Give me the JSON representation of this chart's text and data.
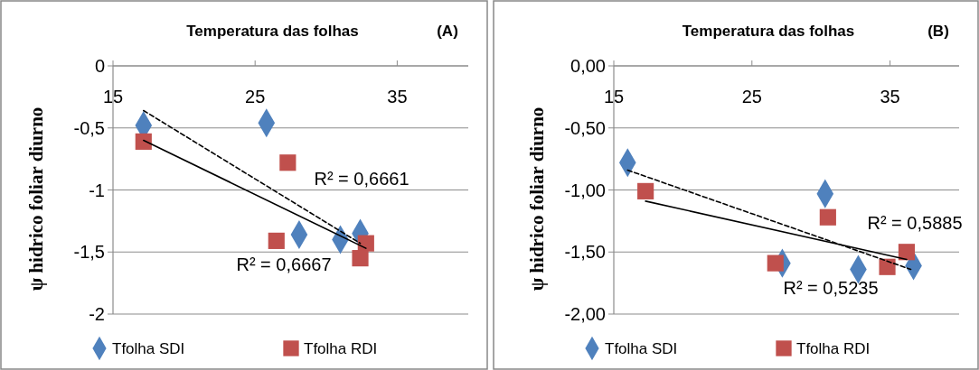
{
  "chart_data": [
    {
      "type": "scatter",
      "title": "Temperatura das folhas",
      "ylabel": "ψ hidrico foliar diurno",
      "annotations": [
        "(A)",
        "R² = 0,6661",
        "R² = 0,6667"
      ],
      "xlim": [
        15,
        40
      ],
      "xticks": [
        15,
        25,
        35
      ],
      "ylim": [
        -2,
        0
      ],
      "yticks": [
        {
          "value": 0,
          "label": "0"
        },
        {
          "value": -0.5,
          "label": "-0,5"
        },
        {
          "value": -1,
          "label": "-1"
        },
        {
          "value": -1.5,
          "label": "-1,5"
        },
        {
          "value": -2,
          "label": "-2"
        }
      ],
      "grid": "y",
      "legend": "bottom",
      "series": [
        {
          "name": "Tfolha SDI",
          "color": "#4f81bd",
          "marker": "diamond",
          "x": [
            17.15,
            25.8,
            28.1,
            31.0,
            32.4
          ],
          "values": [
            -0.48,
            -0.46,
            -1.36,
            -1.4,
            -1.35
          ]
        },
        {
          "name": "Tfolha RDI",
          "color": "#c0504d",
          "marker": "square",
          "x": [
            17.15,
            27.3,
            26.5,
            32.8,
            32.4
          ],
          "values": [
            -0.61,
            -0.78,
            -1.41,
            -1.43,
            -1.55
          ]
        },
        {
          "type": "line",
          "color": "#000000",
          "line_style": "dashed",
          "x": [
            17.15,
            32.4
          ],
          "values": [
            -0.36,
            -1.43
          ]
        },
        {
          "type": "line",
          "color": "#000000",
          "line_style": "solid",
          "x": [
            17.15,
            32.8
          ],
          "values": [
            -0.6,
            -1.47
          ]
        }
      ]
    },
    {
      "type": "scatter",
      "title": "Temperatura das folhas",
      "ylabel": "ψ hidrico foliar diurno",
      "annotations": [
        "(B)",
        "R² = 0,5885",
        "R² = 0,5235"
      ],
      "xlim": [
        15,
        40
      ],
      "xticks": [
        15,
        25,
        35
      ],
      "ylim": [
        -2,
        0
      ],
      "yticks": [
        {
          "value": 0,
          "label": "0,00"
        },
        {
          "value": -0.5,
          "label": "-0,50"
        },
        {
          "value": -1,
          "label": "-1,00"
        },
        {
          "value": -1.5,
          "label": "-1,50"
        },
        {
          "value": -2,
          "label": "-2,00"
        }
      ],
      "grid": "y",
      "legend": "bottom",
      "series": [
        {
          "name": "Tfolha SDI",
          "color": "#4f81bd",
          "marker": "diamond",
          "x": [
            16.0,
            30.3,
            27.2,
            32.7,
            36.7
          ],
          "values": [
            -0.78,
            -1.03,
            -1.59,
            -1.64,
            -1.61
          ]
        },
        {
          "name": "Tfolha RDI",
          "color": "#c0504d",
          "marker": "square",
          "x": [
            17.3,
            30.5,
            26.7,
            34.8,
            36.2
          ],
          "values": [
            -1.01,
            -1.22,
            -1.59,
            -1.62,
            -1.5
          ]
        },
        {
          "type": "line",
          "color": "#000000",
          "line_style": "dashed",
          "x": [
            16.0,
            36.5
          ],
          "values": [
            -0.84,
            -1.64
          ]
        },
        {
          "type": "line",
          "color": "#000000",
          "line_style": "solid",
          "x": [
            17.3,
            36.2
          ],
          "values": [
            -1.09,
            -1.56
          ]
        }
      ]
    }
  ]
}
